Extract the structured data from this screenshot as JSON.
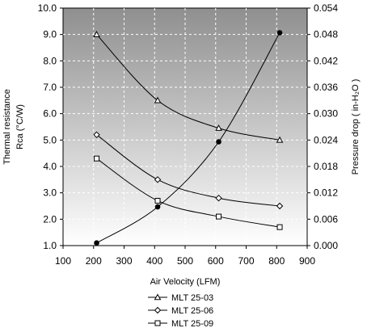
{
  "chart_data": {
    "type": "line",
    "xlabel": "Air Velocity (LFM)",
    "ylabel_left_line1": "Thermal resistance",
    "ylabel_left_line2": "Rca (°C/W)",
    "ylabel_right": "Pressure drop ( in-H₂O )",
    "xlim": [
      100,
      900
    ],
    "x_ticks": [
      "100",
      "200",
      "300",
      "400",
      "500",
      "600",
      "700",
      "800",
      "900"
    ],
    "ylim_left": [
      1.0,
      10.0
    ],
    "y_left_ticks": [
      "1.0",
      "2.0",
      "3.0",
      "4.0",
      "5.0",
      "6.0",
      "7.0",
      "8.0",
      "9.0",
      "10.0"
    ],
    "ylim_right": [
      0.0,
      0.054
    ],
    "y_right_ticks": [
      "0.000",
      "0.006",
      "0.012",
      "0.018",
      "0.024",
      "0.030",
      "0.036",
      "0.042",
      "0.048",
      "0.054"
    ],
    "grid": true,
    "background": "gradient-gray",
    "legend_position": "bottom",
    "series": [
      {
        "name": "MLT 25-03",
        "axis": "left",
        "marker": "triangle",
        "x": [
          210,
          410,
          610,
          810
        ],
        "y": [
          9.0,
          6.5,
          5.45,
          5.0
        ]
      },
      {
        "name": "MLT 25-06",
        "axis": "left",
        "marker": "diamond",
        "x": [
          210,
          410,
          610,
          810
        ],
        "y": [
          5.2,
          3.5,
          2.8,
          2.5
        ]
      },
      {
        "name": "MLT 25-09",
        "axis": "left",
        "marker": "square",
        "x": [
          210,
          410,
          610,
          810
        ],
        "y": [
          4.3,
          2.7,
          2.1,
          1.7
        ]
      },
      {
        "axis": "right",
        "marker": "filled-circle",
        "x": [
          210,
          410,
          610,
          810
        ],
        "y": [
          0.0006,
          0.0088,
          0.0236,
          0.0484
        ]
      }
    ]
  }
}
